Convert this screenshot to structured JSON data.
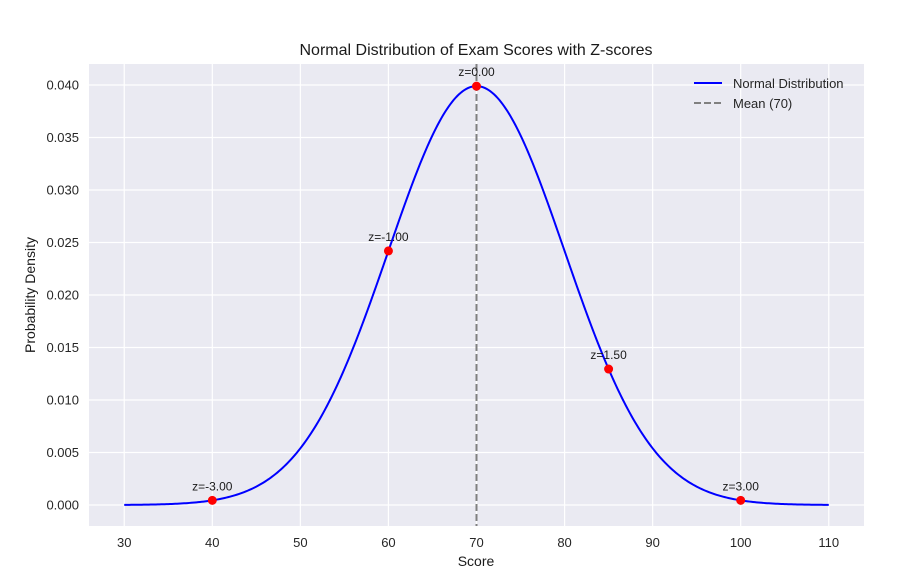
{
  "chart_data": {
    "type": "line",
    "title": "Normal Distribution of Exam Scores with Z-scores",
    "xlabel": "Score",
    "ylabel": "Probability Density",
    "xlim": [
      26,
      114
    ],
    "ylim": [
      -0.002,
      0.042
    ],
    "x_ticks": [
      30,
      40,
      50,
      60,
      70,
      80,
      90,
      100,
      110
    ],
    "y_ticks": [
      0.0,
      0.005,
      0.01,
      0.015,
      0.02,
      0.025,
      0.03,
      0.035,
      0.04
    ],
    "y_tick_labels": [
      "0.000",
      "0.005",
      "0.010",
      "0.015",
      "0.020",
      "0.025",
      "0.030",
      "0.035",
      "0.040"
    ],
    "grid": true,
    "legend_placement": "top-right",
    "mean": 70,
    "std": 10,
    "curve_x_range": [
      30,
      110
    ],
    "series": [
      {
        "name": "Normal Distribution",
        "color": "#0000ff",
        "style": "solid"
      },
      {
        "name": "Mean (70)",
        "color": "#808080",
        "style": "dashed",
        "x": 70
      }
    ],
    "points": [
      {
        "x": 40,
        "y": 0.00044,
        "label": "z=-3.00"
      },
      {
        "x": 60,
        "y": 0.0242,
        "label": "z=-1.00"
      },
      {
        "x": 70,
        "y": 0.03989,
        "label": "z=0.00"
      },
      {
        "x": 85,
        "y": 0.01295,
        "label": "z=1.50"
      },
      {
        "x": 100,
        "y": 0.00044,
        "label": "z=3.00"
      }
    ],
    "point_color": "#ff0000"
  }
}
